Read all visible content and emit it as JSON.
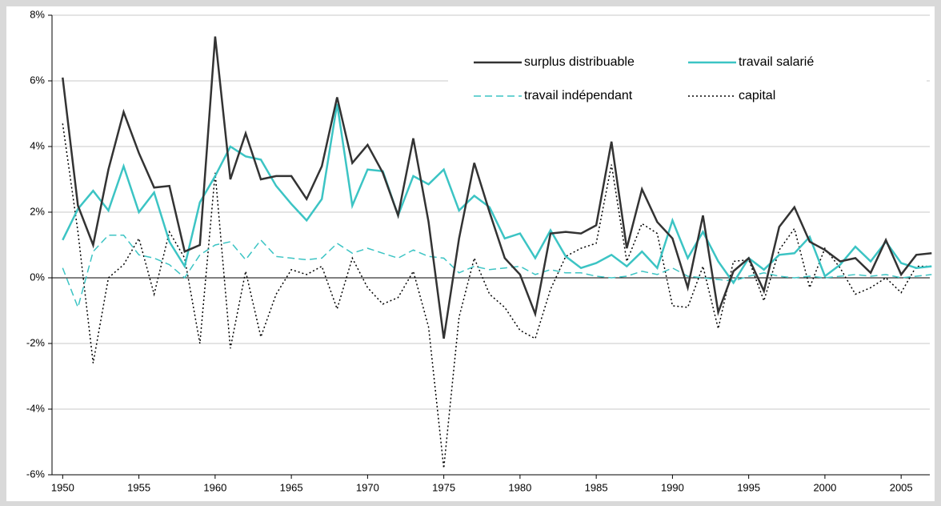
{
  "chart_data": {
    "type": "line",
    "x": [
      1950,
      1951,
      1952,
      1953,
      1954,
      1955,
      1956,
      1957,
      1958,
      1959,
      1960,
      1961,
      1962,
      1963,
      1964,
      1965,
      1966,
      1967,
      1968,
      1969,
      1970,
      1971,
      1972,
      1973,
      1974,
      1975,
      1976,
      1977,
      1978,
      1979,
      1980,
      1981,
      1982,
      1983,
      1984,
      1985,
      1986,
      1987,
      1988,
      1989,
      1990,
      1991,
      1992,
      1993,
      1994,
      1995,
      1996,
      1997,
      1998,
      1999,
      2000,
      2001,
      2002,
      2003,
      2004,
      2005,
      2006,
      2007
    ],
    "xlim": [
      1949.3,
      2007.3
    ],
    "xticks": [
      1950,
      1955,
      1960,
      1965,
      1970,
      1975,
      1980,
      1985,
      1990,
      1995,
      2000,
      2005
    ],
    "ylim": [
      -6,
      8
    ],
    "yticks": [
      {
        "value": -6,
        "label": "-6%"
      },
      {
        "value": -4,
        "label": "-4%"
      },
      {
        "value": -2,
        "label": "-2%"
      },
      {
        "value": 0,
        "label": "0%"
      },
      {
        "value": 2,
        "label": "2%"
      },
      {
        "value": 4,
        "label": "4%"
      },
      {
        "value": 6,
        "label": "6%"
      },
      {
        "value": 8,
        "label": "8%"
      }
    ],
    "grid": true,
    "legend": "upper right",
    "series": [
      {
        "name": "surplus distribuable",
        "color": "#333333",
        "dash": "solid",
        "values": [
          6.1,
          2.2,
          1.0,
          3.3,
          5.05,
          3.8,
          2.75,
          2.8,
          0.8,
          1.0,
          7.35,
          3.0,
          4.4,
          3.0,
          3.1,
          3.1,
          2.4,
          3.4,
          5.5,
          3.5,
          4.05,
          3.2,
          1.9,
          4.25,
          1.7,
          -1.85,
          1.2,
          3.5,
          2.0,
          0.6,
          0.1,
          -1.1,
          1.35,
          1.4,
          1.35,
          1.6,
          4.15,
          0.9,
          2.7,
          1.7,
          1.2,
          -0.3,
          1.9,
          -1.05,
          0.2,
          0.6,
          -0.4,
          1.55,
          2.15,
          1.1,
          0.85,
          0.5,
          0.6,
          0.15,
          1.15,
          0.1,
          0.7,
          0.75
        ]
      },
      {
        "name": "travail salarié",
        "color": "#3cc4c4",
        "dash": "solid",
        "values": [
          1.15,
          2.1,
          2.65,
          2.05,
          3.4,
          2.0,
          2.6,
          1.1,
          0.35,
          2.3,
          3.1,
          4.0,
          3.7,
          3.6,
          2.8,
          2.25,
          1.75,
          2.4,
          5.3,
          2.2,
          3.3,
          3.25,
          1.9,
          3.1,
          2.85,
          3.3,
          2.05,
          2.5,
          2.15,
          1.2,
          1.35,
          0.6,
          1.45,
          0.65,
          0.3,
          0.45,
          0.7,
          0.35,
          0.8,
          0.3,
          1.75,
          0.6,
          1.4,
          0.5,
          -0.15,
          0.6,
          0.25,
          0.7,
          0.75,
          1.25,
          0.05,
          0.4,
          0.95,
          0.5,
          1.1,
          0.45,
          0.3,
          0.35
        ]
      },
      {
        "name": "travail indépendant",
        "color": "#3cc4c4",
        "dash": "dashed",
        "values": [
          0.3,
          -0.9,
          0.8,
          1.3,
          1.3,
          0.7,
          0.6,
          0.4,
          0.0,
          0.7,
          1.0,
          1.1,
          0.55,
          1.15,
          0.65,
          0.6,
          0.55,
          0.6,
          1.05,
          0.75,
          0.9,
          0.75,
          0.6,
          0.85,
          0.65,
          0.6,
          0.15,
          0.35,
          0.25,
          0.3,
          0.35,
          0.1,
          0.25,
          0.15,
          0.15,
          0.05,
          0.0,
          0.05,
          0.2,
          0.1,
          0.3,
          0.05,
          0.0,
          -0.05,
          -0.1,
          0.05,
          0.15,
          0.05,
          0.0,
          0.05,
          0.0,
          0.05,
          0.1,
          0.05,
          0.1,
          0.0,
          0.05,
          0.1
        ]
      },
      {
        "name": "capital",
        "color": "#000000",
        "dash": "dotted",
        "values": [
          4.7,
          1.4,
          -2.6,
          0.0,
          0.4,
          1.2,
          -0.5,
          1.4,
          0.6,
          -2.0,
          3.2,
          -2.15,
          0.2,
          -1.8,
          -0.5,
          0.25,
          0.1,
          0.35,
          -0.95,
          0.6,
          -0.3,
          -0.8,
          -0.6,
          0.2,
          -1.5,
          -5.8,
          -1.2,
          0.6,
          -0.5,
          -0.9,
          -1.6,
          -1.85,
          -0.35,
          0.65,
          0.9,
          1.05,
          3.45,
          0.5,
          1.65,
          1.35,
          -0.85,
          -0.9,
          0.35,
          -1.55,
          0.5,
          0.55,
          -0.7,
          0.85,
          1.5,
          -0.3,
          0.9,
          0.3,
          -0.5,
          -0.3,
          0.0,
          -0.45,
          0.35,
          0.35
        ]
      }
    ]
  }
}
